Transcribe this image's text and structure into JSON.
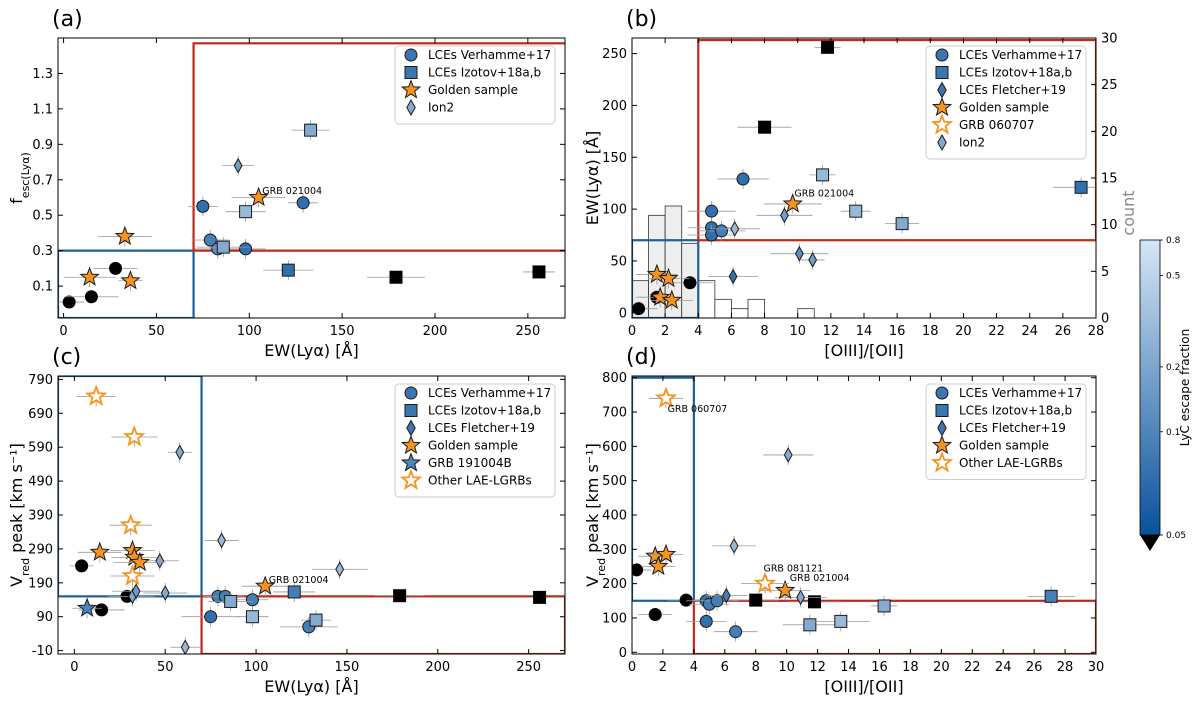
{
  "chart_data": [
    {
      "panel": "(a)",
      "type": "scatter",
      "xlabel": "EW(Lyα) [Å]",
      "ylabel": "f_esc(Lyα)",
      "xlim": [
        -3,
        270
      ],
      "ylim": [
        -0.08,
        1.5
      ],
      "xticks": [
        0,
        50,
        100,
        150,
        200,
        250
      ],
      "yticks": [
        0.1,
        0.3,
        0.5,
        0.7,
        0.9,
        1.1,
        1.3
      ],
      "boxes": [
        {
          "color": "blue",
          "x": [
            -3,
            70
          ],
          "y": [
            -0.08,
            0.3
          ]
        },
        {
          "color": "red",
          "x": [
            70,
            273
          ],
          "y": [
            0.3,
            1.47
          ]
        }
      ],
      "legend": [
        "LCEs Verhamme+17",
        "LCEs Izotov+18a,b",
        "Golden sample",
        "Ion2"
      ],
      "annotations": [
        {
          "text": "GRB 021004",
          "x": 107,
          "y": 0.62
        }
      ],
      "points": [
        {
          "x": 3,
          "y": 0.01,
          "m": "circle",
          "c": "black"
        },
        {
          "x": 15,
          "y": 0.04,
          "m": "circle",
          "c": "black"
        },
        {
          "x": 28,
          "y": 0.2,
          "m": "circle",
          "c": "black"
        },
        {
          "x": 179,
          "y": 0.15,
          "m": "square",
          "c": "black"
        },
        {
          "x": 256,
          "y": 0.18,
          "m": "square",
          "c": "black"
        },
        {
          "x": 75,
          "y": 0.55,
          "m": "circle",
          "c": 0.2
        },
        {
          "x": 79,
          "y": 0.36,
          "m": "circle",
          "c": 0.3
        },
        {
          "x": 83,
          "y": 0.31,
          "m": "circle",
          "c": 0.4
        },
        {
          "x": 98,
          "y": 0.31,
          "m": "circle",
          "c": 0.2
        },
        {
          "x": 129,
          "y": 0.57,
          "m": "circle",
          "c": 0.2
        },
        {
          "x": 86,
          "y": 0.32,
          "m": "square",
          "c": 0.6
        },
        {
          "x": 98,
          "y": 0.52,
          "m": "square",
          "c": 0.7
        },
        {
          "x": 121,
          "y": 0.19,
          "m": "square",
          "c": 0.2
        },
        {
          "x": 133,
          "y": 0.98,
          "m": "square",
          "c": 0.6
        },
        {
          "x": 94,
          "y": 0.78,
          "m": "diamond",
          "c": 0.5
        },
        {
          "x": 14,
          "y": 0.15,
          "m": "star",
          "c": "orange"
        },
        {
          "x": 33,
          "y": 0.38,
          "m": "star",
          "c": "orange"
        },
        {
          "x": 36,
          "y": 0.13,
          "m": "star",
          "c": "orange"
        },
        {
          "x": 105,
          "y": 0.6,
          "m": "star",
          "c": "orange"
        }
      ]
    },
    {
      "panel": "(b)",
      "type": "scatter",
      "xlabel": "[OIII]/[OII]",
      "ylabel": "EW(Lyα) [Å]",
      "ylabel_right": "count",
      "xlim": [
        0,
        28
      ],
      "ylim": [
        -5,
        265
      ],
      "ylim_right": [
        0,
        30
      ],
      "xticks": [
        0,
        2,
        4,
        6,
        8,
        10,
        12,
        14,
        16,
        18,
        20,
        22,
        24,
        26,
        28
      ],
      "yticks": [
        0,
        50,
        100,
        150,
        200,
        250
      ],
      "yticks_right": [
        0,
        5,
        10,
        15,
        20,
        25,
        30
      ],
      "histogram": {
        "bin_edges": [
          0,
          1,
          2,
          3,
          4,
          5,
          6,
          7,
          8,
          9,
          10,
          11
        ],
        "counts": [
          4,
          11,
          12,
          8,
          4,
          2,
          1,
          2,
          0,
          0,
          1
        ]
      },
      "boxes": [
        {
          "color": "blue",
          "x": [
            0,
            4
          ],
          "y": [
            -5,
            70
          ]
        },
        {
          "color": "red",
          "x": [
            4,
            28
          ],
          "y": [
            70,
            263
          ]
        }
      ],
      "legend": [
        "LCEs Verhamme+17",
        "LCEs Izotov+18a,b",
        "LCEs Fletcher+19",
        "Golden sample",
        "GRB 060707",
        "Ion2"
      ],
      "annotations": [
        {
          "text": "GRB 021004",
          "x": 9.8,
          "y": 112
        }
      ],
      "points": [
        {
          "x": 0.4,
          "y": 4,
          "m": "circle",
          "c": "black"
        },
        {
          "x": 1.5,
          "y": 15,
          "m": "circle",
          "c": "black"
        },
        {
          "x": 3.5,
          "y": 29,
          "m": "circle",
          "c": "black"
        },
        {
          "x": 8,
          "y": 179,
          "m": "square",
          "c": "black"
        },
        {
          "x": 11.8,
          "y": 256,
          "m": "square",
          "c": "black"
        },
        {
          "x": 4.8,
          "y": 98,
          "m": "circle",
          "c": 0.2
        },
        {
          "x": 4.8,
          "y": 82,
          "m": "circle",
          "c": 0.2
        },
        {
          "x": 4.8,
          "y": 75,
          "m": "circle",
          "c": 0.2
        },
        {
          "x": 5.4,
          "y": 79,
          "m": "circle",
          "c": 0.3
        },
        {
          "x": 6.7,
          "y": 129,
          "m": "circle",
          "c": 0.2
        },
        {
          "x": 11.5,
          "y": 133,
          "m": "square",
          "c": 0.7
        },
        {
          "x": 13.5,
          "y": 98,
          "m": "square",
          "c": 0.7
        },
        {
          "x": 16.3,
          "y": 86,
          "m": "square",
          "c": 0.6
        },
        {
          "x": 27.1,
          "y": 121,
          "m": "square",
          "c": 0.2
        },
        {
          "x": 6.1,
          "y": 35,
          "m": "diamond",
          "c": 0.2
        },
        {
          "x": 6.2,
          "y": 81,
          "m": "diamond",
          "c": 0.7
        },
        {
          "x": 10.1,
          "y": 57,
          "m": "diamond",
          "c": 0.4
        },
        {
          "x": 10.9,
          "y": 51,
          "m": "diamond",
          "c": 0.5
        },
        {
          "x": 9.2,
          "y": 94,
          "m": "diamond",
          "c": 0.5
        },
        {
          "x": 1.5,
          "y": 37,
          "m": "star",
          "c": "orange"
        },
        {
          "x": 2.2,
          "y": 33,
          "m": "star",
          "c": "orange"
        },
        {
          "x": 1.7,
          "y": 15,
          "m": "star",
          "c": "orange"
        },
        {
          "x": 2.4,
          "y": 12,
          "m": "star",
          "c": "orange"
        },
        {
          "x": 9.7,
          "y": 105,
          "m": "star",
          "c": "orange"
        }
      ]
    },
    {
      "panel": "(c)",
      "type": "scatter",
      "xlabel": "EW(Lyα) [Å]",
      "ylabel": "V_red peak [km s⁻¹]",
      "xlim": [
        -9,
        270
      ],
      "ylim": [
        -20,
        800
      ],
      "xticks": [
        0,
        50,
        100,
        150,
        200,
        250
      ],
      "yticks": [
        -10,
        90,
        190,
        290,
        390,
        490,
        590,
        690,
        790
      ],
      "boxes": [
        {
          "color": "blue",
          "x": [
            -9,
            70
          ],
          "y": [
            150,
            800
          ]
        },
        {
          "color": "red",
          "x": [
            70,
            270
          ],
          "y": [
            -20,
            150
          ]
        }
      ],
      "legend": [
        "LCEs Verhamme+17",
        "LCEs Izotov+18a,b",
        "LCEs Fletcher+19",
        "Golden sample",
        "GRB 191004B",
        "Other LAE-LGRBs"
      ],
      "annotations": [
        {
          "text": "GRB 021004",
          "x": 107,
          "y": 190
        }
      ],
      "points": [
        {
          "x": 4,
          "y": 240,
          "m": "circle",
          "c": "black"
        },
        {
          "x": 15,
          "y": 110,
          "m": "circle",
          "c": "black"
        },
        {
          "x": 29,
          "y": 150,
          "m": "circle",
          "c": "black"
        },
        {
          "x": 179,
          "y": 152,
          "m": "square",
          "c": "black"
        },
        {
          "x": 256,
          "y": 147,
          "m": "square",
          "c": "black"
        },
        {
          "x": 75,
          "y": 90,
          "m": "circle",
          "c": 0.2
        },
        {
          "x": 79,
          "y": 150,
          "m": "circle",
          "c": 0.3
        },
        {
          "x": 83,
          "y": 150,
          "m": "circle",
          "c": 0.3
        },
        {
          "x": 98,
          "y": 140,
          "m": "circle",
          "c": 0.3
        },
        {
          "x": 129,
          "y": 60,
          "m": "circle",
          "c": 0.3
        },
        {
          "x": 86,
          "y": 135,
          "m": "square",
          "c": 0.6
        },
        {
          "x": 98,
          "y": 90,
          "m": "square",
          "c": 0.7
        },
        {
          "x": 121,
          "y": 163,
          "m": "square",
          "c": 0.3
        },
        {
          "x": 133,
          "y": 80,
          "m": "square",
          "c": 0.6
        },
        {
          "x": 32,
          "y": 150,
          "m": "diamond",
          "c": 0.6
        },
        {
          "x": 34,
          "y": 165,
          "m": "diamond",
          "c": 0.5
        },
        {
          "x": 47,
          "y": 255,
          "m": "diamond",
          "c": 0.6
        },
        {
          "x": 50,
          "y": 160,
          "m": "diamond",
          "c": 0.6
        },
        {
          "x": 58,
          "y": 575,
          "m": "diamond",
          "c": 0.6
        },
        {
          "x": 61,
          "y": 0,
          "m": "diamond",
          "c": 0.7
        },
        {
          "x": 81,
          "y": 315,
          "m": "diamond",
          "c": 0.7
        },
        {
          "x": 146,
          "y": 230,
          "m": "diamond",
          "c": 0.7
        },
        {
          "x": 14,
          "y": 280,
          "m": "star",
          "c": "orange"
        },
        {
          "x": 32,
          "y": 285,
          "m": "star",
          "c": "orange"
        },
        {
          "x": 33,
          "y": 265,
          "m": "star",
          "c": "orange"
        },
        {
          "x": 36,
          "y": 250,
          "m": "star",
          "c": "orange"
        },
        {
          "x": 105,
          "y": 180,
          "m": "star",
          "c": "orange"
        },
        {
          "x": 7,
          "y": 115,
          "m": "star",
          "c": "blue"
        },
        {
          "x": 12,
          "y": 740,
          "m": "star",
          "c": "open"
        },
        {
          "x": 33,
          "y": 620,
          "m": "star",
          "c": "open"
        },
        {
          "x": 31,
          "y": 360,
          "m": "star",
          "c": "open"
        },
        {
          "x": 32,
          "y": 210,
          "m": "star",
          "c": "open"
        }
      ]
    },
    {
      "panel": "(d)",
      "type": "scatter",
      "xlabel": "[OIII]/[OII]",
      "ylabel": "V_red peak [km s⁻¹]",
      "xlim": [
        0,
        30
      ],
      "ylim": [
        -5,
        805
      ],
      "xticks": [
        0,
        2,
        4,
        6,
        8,
        10,
        12,
        14,
        16,
        18,
        20,
        22,
        24,
        26,
        28,
        30
      ],
      "yticks": [
        0,
        100,
        200,
        300,
        400,
        500,
        600,
        700,
        800
      ],
      "boxes": [
        {
          "color": "blue",
          "x": [
            0,
            4
          ],
          "y": [
            150,
            800
          ]
        },
        {
          "color": "red",
          "x": [
            4,
            30
          ],
          "y": [
            -5,
            150
          ]
        }
      ],
      "legend": [
        "LCEs Verhamme+17",
        "LCEs Izotov+18a,b",
        "LCEs Fletcher+19",
        "Golden sample",
        "Other LAE-LGRBs"
      ],
      "annotations": [
        {
          "text": "GRB 060707",
          "x": 2.3,
          "y": 700
        },
        {
          "text": "GRB 081121",
          "x": 8.5,
          "y": 235
        },
        {
          "text": "GRB 021004",
          "x": 10.2,
          "y": 208
        }
      ],
      "points": [
        {
          "x": 0.3,
          "y": 240,
          "m": "circle",
          "c": "black"
        },
        {
          "x": 1.5,
          "y": 110,
          "m": "circle",
          "c": "black"
        },
        {
          "x": 3.5,
          "y": 152,
          "m": "circle",
          "c": "black"
        },
        {
          "x": 8,
          "y": 152,
          "m": "square",
          "c": "black"
        },
        {
          "x": 11.8,
          "y": 147,
          "m": "square",
          "c": "black"
        },
        {
          "x": 4.8,
          "y": 90,
          "m": "circle",
          "c": 0.2
        },
        {
          "x": 4.8,
          "y": 150,
          "m": "circle",
          "c": 0.2
        },
        {
          "x": 5,
          "y": 140,
          "m": "circle",
          "c": 0.3
        },
        {
          "x": 5.5,
          "y": 150,
          "m": "circle",
          "c": 0.3
        },
        {
          "x": 6.7,
          "y": 60,
          "m": "circle",
          "c": 0.3
        },
        {
          "x": 11.5,
          "y": 80,
          "m": "square",
          "c": 0.6
        },
        {
          "x": 13.5,
          "y": 90,
          "m": "square",
          "c": 0.7
        },
        {
          "x": 16.3,
          "y": 135,
          "m": "square",
          "c": 0.6
        },
        {
          "x": 27.1,
          "y": 163,
          "m": "square",
          "c": 0.3
        },
        {
          "x": 6.1,
          "y": 165,
          "m": "diamond",
          "c": 0.3
        },
        {
          "x": 6.6,
          "y": 310,
          "m": "diamond",
          "c": 0.7
        },
        {
          "x": 10.1,
          "y": 575,
          "m": "diamond",
          "c": 0.6
        },
        {
          "x": 10.9,
          "y": 160,
          "m": "diamond",
          "c": 0.6
        },
        {
          "x": 1.5,
          "y": 280,
          "m": "star",
          "c": "orange"
        },
        {
          "x": 2.2,
          "y": 285,
          "m": "star",
          "c": "orange"
        },
        {
          "x": 1.7,
          "y": 250,
          "m": "star",
          "c": "orange"
        },
        {
          "x": 9.9,
          "y": 180,
          "m": "star",
          "c": "orange"
        },
        {
          "x": 2.2,
          "y": 740,
          "m": "star",
          "c": "open"
        },
        {
          "x": 8.6,
          "y": 200,
          "m": "star",
          "c": "open"
        }
      ]
    }
  ],
  "colorbar": {
    "label": "LyC escape fraction",
    "tick_labels": [
      "0.8",
      "0.5",
      "0.2",
      "0.1",
      "0.05"
    ],
    "range": [
      0.05,
      0.8
    ]
  },
  "colors": {
    "orange": "#f7931e",
    "black": "#000000",
    "red_box": "#c0281b",
    "blue_box": "#1f5f99",
    "err": "#999999",
    "cmap_dark": "#08519c",
    "cmap_light": "#d6e6f4"
  }
}
